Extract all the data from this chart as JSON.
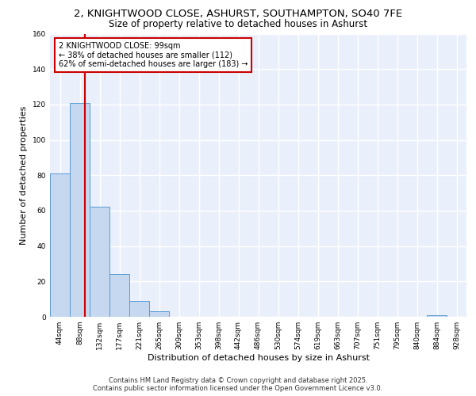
{
  "title1": "2, KNIGHTWOOD CLOSE, ASHURST, SOUTHAMPTON, SO40 7FE",
  "title2": "Size of property relative to detached houses in Ashurst",
  "xlabel": "Distribution of detached houses by size in Ashurst",
  "ylabel": "Number of detached properties",
  "categories": [
    "44sqm",
    "88sqm",
    "132sqm",
    "177sqm",
    "221sqm",
    "265sqm",
    "309sqm",
    "353sqm",
    "398sqm",
    "442sqm",
    "486sqm",
    "530sqm",
    "574sqm",
    "619sqm",
    "663sqm",
    "707sqm",
    "751sqm",
    "795sqm",
    "840sqm",
    "884sqm",
    "928sqm"
  ],
  "values": [
    81,
    121,
    62,
    24,
    9,
    3,
    0,
    0,
    0,
    0,
    0,
    0,
    0,
    0,
    0,
    0,
    0,
    0,
    0,
    1,
    0
  ],
  "bar_color": "#c5d8f0",
  "bar_edge_color": "#5b9bd5",
  "bg_color": "#eaf0fb",
  "grid_color": "#ffffff",
  "vline_x": 1.25,
  "vline_color": "#cc0000",
  "annotation_text": "2 KNIGHTWOOD CLOSE: 99sqm\n← 38% of detached houses are smaller (112)\n62% of semi-detached houses are larger (183) →",
  "annotation_box_color": "#cc0000",
  "ylim": [
    0,
    160
  ],
  "yticks": [
    0,
    20,
    40,
    60,
    80,
    100,
    120,
    140,
    160
  ],
  "footnote": "Contains HM Land Registry data © Crown copyright and database right 2025.\nContains public sector information licensed under the Open Government Licence v3.0.",
  "title_fontsize": 9.5,
  "subtitle_fontsize": 8.5,
  "axis_fontsize": 8,
  "tick_fontsize": 6.5,
  "annotation_fontsize": 7,
  "footnote_fontsize": 6
}
